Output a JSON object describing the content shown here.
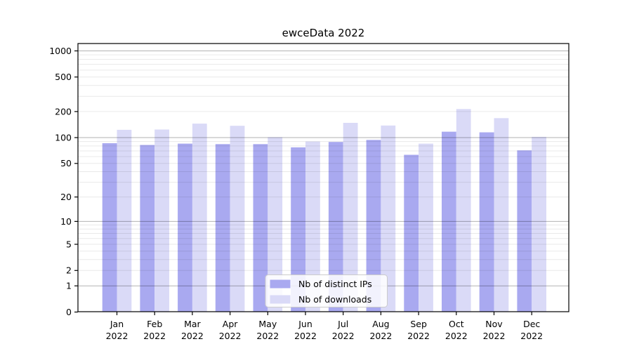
{
  "title": "ewceData 2022",
  "chart_data": {
    "type": "bar",
    "title": "ewceData 2022",
    "categories": [
      "Jan 2022",
      "Feb 2022",
      "Mar 2022",
      "Apr 2022",
      "May 2022",
      "Jun 2022",
      "Jul 2022",
      "Aug 2022",
      "Sep 2022",
      "Oct 2022",
      "Nov 2022",
      "Dec 2022"
    ],
    "series": [
      {
        "name": "Nb of distinct IPs",
        "key": "distinct-ips",
        "color": "#a9a9f0",
        "values": [
          86,
          82,
          85,
          84,
          84,
          77,
          89,
          94,
          63,
          117,
          115,
          71
        ]
      },
      {
        "name": "Nb of downloads",
        "key": "downloads",
        "color": "#dadaf7",
        "values": [
          123,
          124,
          145,
          137,
          101,
          90,
          148,
          138,
          85,
          214,
          168,
          102
        ]
      }
    ],
    "xlabel": "",
    "ylabel": "",
    "yscale": "log1p",
    "yticks": [
      0,
      1,
      2,
      5,
      10,
      20,
      50,
      100,
      200,
      500,
      1000
    ],
    "ylim": [
      0,
      1210
    ],
    "grid": "horizontal, log minor + major lines, drawn over bars",
    "legend_position": "bottom-center-inside",
    "legend_entries": [
      "Nb of distinct IPs",
      "Nb of downloads"
    ]
  }
}
